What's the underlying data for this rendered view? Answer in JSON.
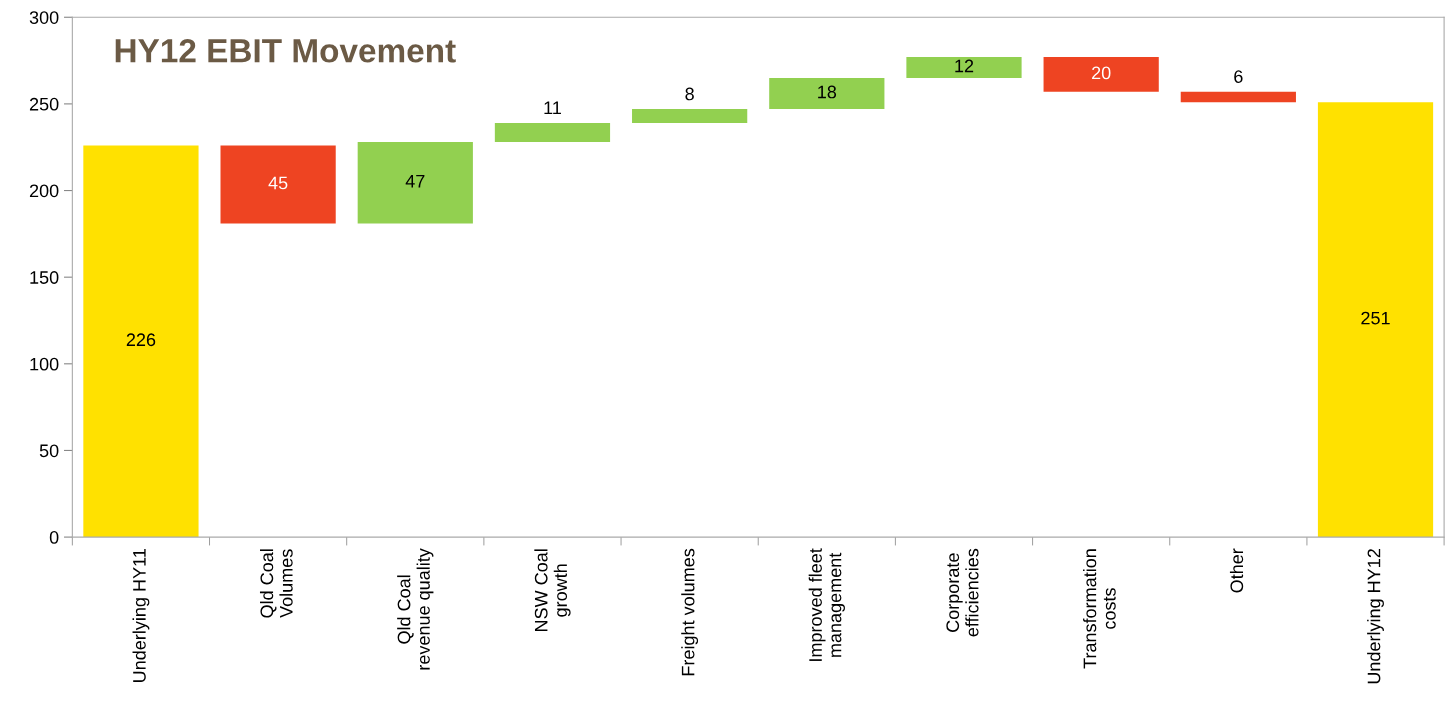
{
  "chart_data": {
    "type": "bar",
    "title": "HY12 EBIT Movement",
    "categories": [
      "Underlying HY11",
      "Qld Coal\nVolumes",
      "Qld Coal\nrevenue quality",
      "NSW Coal\ngrowth",
      "Freight volumes",
      "Improved fleet\nmanagement",
      "Corporate\nefficiencies",
      "Transformation\ncosts",
      "Other",
      "Underlying HY12"
    ],
    "values": [
      226,
      -45,
      47,
      11,
      8,
      18,
      12,
      -20,
      -6,
      251
    ],
    "base": [
      0,
      226,
      181,
      228,
      239,
      247,
      265,
      277,
      257,
      0
    ],
    "colors": [
      "#ffe100",
      "#ee4422",
      "#92d050",
      "#92d050",
      "#92d050",
      "#92d050",
      "#92d050",
      "#ee4422",
      "#ee4422",
      "#ffe100"
    ],
    "value_labels": [
      "226",
      "45",
      "47",
      "11",
      "8",
      "18",
      "12",
      "20",
      "6",
      "251"
    ],
    "ylim": [
      0,
      300
    ],
    "yticks": [
      0,
      50,
      100,
      150,
      200,
      250,
      300
    ],
    "grid": false
  }
}
